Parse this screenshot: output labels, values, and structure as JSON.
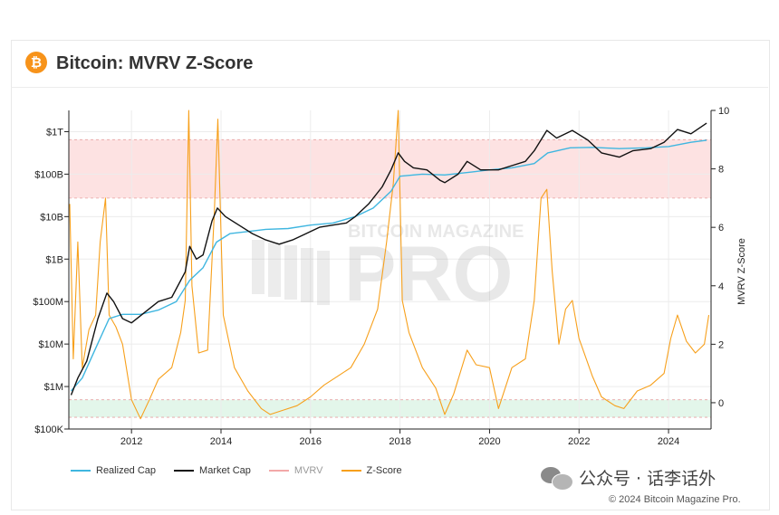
{
  "header": {
    "title": "Bitcoin: MVRV Z-Score",
    "logo_symbol": "₿",
    "logo_color": "#f7931a"
  },
  "legend": {
    "items": [
      {
        "label": "Realized Cap",
        "color": "#3fb6e0"
      },
      {
        "label": "Market Cap",
        "color": "#111111"
      },
      {
        "label": "MVRV",
        "color": "#f2a8a8"
      },
      {
        "label": "Z-Score",
        "color": "#f7a01c"
      }
    ]
  },
  "watermark": {
    "wechat": "公众号 · 话李话外",
    "chart_brand": "BITCOIN MAGAZINE",
    "chart_brand_big": "PRO"
  },
  "footer": {
    "copyright": "© 2024 Bitcoin Magazine Pro."
  },
  "chart_data": {
    "type": "line",
    "title": "Bitcoin: MVRV Z-Score",
    "xlabel": "",
    "ylabel_right": "MVRV Z-Score",
    "x_ticks": [
      "2012",
      "2014",
      "2016",
      "2018",
      "2020",
      "2022",
      "2024"
    ],
    "y_left_ticks": [
      "$100K",
      "$1M",
      "$10M",
      "$100M",
      "$1B",
      "$10B",
      "$100B",
      "$1T"
    ],
    "y_right_ticks": [
      "0",
      "2",
      "4",
      "6",
      "8",
      "10"
    ],
    "xlim": [
      2010.6,
      2024.95
    ],
    "y_left_log10_range": [
      5,
      12.5
    ],
    "y_right_range": [
      -0.9,
      10
    ],
    "bands": [
      {
        "name": "red",
        "from": 7,
        "to": 9,
        "color": "#fde2e2"
      },
      {
        "name": "green",
        "from": -0.5,
        "to": 0.1,
        "color": "#e3f6ea"
      }
    ],
    "series": [
      {
        "name": "Market Cap",
        "axis": "left",
        "color": "#111111",
        "x": [
          2010.65,
          2010.8,
          2011.0,
          2011.25,
          2011.45,
          2011.6,
          2011.8,
          2012.0,
          2012.3,
          2012.6,
          2012.9,
          2013.2,
          2013.3,
          2013.45,
          2013.6,
          2013.8,
          2013.92,
          2014.1,
          2014.4,
          2014.7,
          2015.0,
          2015.3,
          2015.6,
          2015.9,
          2016.2,
          2016.5,
          2016.8,
          2017.0,
          2017.3,
          2017.6,
          2017.8,
          2017.96,
          2018.1,
          2018.3,
          2018.6,
          2018.9,
          2019.0,
          2019.3,
          2019.5,
          2019.8,
          2020.2,
          2020.5,
          2020.8,
          2021.0,
          2021.28,
          2021.5,
          2021.85,
          2022.2,
          2022.5,
          2022.9,
          2023.2,
          2023.6,
          2023.9,
          2024.2,
          2024.5,
          2024.85
        ],
        "values": [
          5.8,
          6.2,
          6.6,
          7.6,
          8.2,
          8.0,
          7.6,
          7.5,
          7.75,
          8.0,
          8.1,
          8.7,
          9.3,
          9.0,
          9.1,
          9.9,
          10.2,
          10.0,
          9.8,
          9.6,
          9.45,
          9.35,
          9.45,
          9.6,
          9.75,
          9.8,
          9.85,
          10.0,
          10.3,
          10.7,
          11.1,
          11.5,
          11.3,
          11.15,
          11.1,
          10.85,
          10.8,
          11.0,
          11.3,
          11.1,
          11.1,
          11.2,
          11.3,
          11.55,
          12.03,
          11.85,
          12.03,
          11.8,
          11.5,
          11.4,
          11.55,
          11.6,
          11.75,
          12.05,
          11.95,
          12.2
        ]
      },
      {
        "name": "Realized Cap",
        "axis": "left",
        "color": "#3fb6e0",
        "x": [
          2010.65,
          2010.9,
          2011.2,
          2011.5,
          2011.8,
          2012.2,
          2012.6,
          2013.0,
          2013.3,
          2013.6,
          2013.9,
          2014.2,
          2014.6,
          2015.0,
          2015.5,
          2016.0,
          2016.5,
          2017.0,
          2017.4,
          2017.8,
          2018.0,
          2018.5,
          2019.0,
          2019.6,
          2020.0,
          2020.5,
          2021.0,
          2021.3,
          2021.8,
          2022.3,
          2022.9,
          2023.5,
          2024.0,
          2024.5,
          2024.85
        ],
        "values": [
          5.9,
          6.2,
          6.9,
          7.6,
          7.7,
          7.7,
          7.8,
          8.0,
          8.5,
          8.8,
          9.4,
          9.6,
          9.65,
          9.7,
          9.72,
          9.8,
          9.85,
          10.0,
          10.2,
          10.6,
          10.95,
          11.0,
          10.98,
          11.05,
          11.1,
          11.15,
          11.25,
          11.5,
          11.62,
          11.63,
          11.6,
          11.62,
          11.65,
          11.75,
          11.8
        ]
      },
      {
        "name": "Z-Score",
        "axis": "right",
        "color": "#f7a01c",
        "x": [
          2010.62,
          2010.7,
          2010.8,
          2010.9,
          2011.05,
          2011.2,
          2011.3,
          2011.42,
          2011.5,
          2011.65,
          2011.8,
          2012.0,
          2012.2,
          2012.4,
          2012.6,
          2012.9,
          2013.1,
          2013.2,
          2013.28,
          2013.35,
          2013.5,
          2013.7,
          2013.85,
          2013.93,
          2014.05,
          2014.3,
          2014.6,
          2014.9,
          2015.1,
          2015.4,
          2015.7,
          2016.0,
          2016.3,
          2016.6,
          2016.9,
          2017.2,
          2017.5,
          2017.7,
          2017.85,
          2017.96,
          2018.05,
          2018.2,
          2018.5,
          2018.8,
          2019.0,
          2019.2,
          2019.5,
          2019.7,
          2020.0,
          2020.2,
          2020.5,
          2020.8,
          2021.0,
          2021.15,
          2021.28,
          2021.4,
          2021.55,
          2021.7,
          2021.85,
          2022.0,
          2022.3,
          2022.5,
          2022.8,
          2023.0,
          2023.3,
          2023.6,
          2023.9,
          2024.05,
          2024.2,
          2024.4,
          2024.6,
          2024.8,
          2024.9
        ],
        "values": [
          6.8,
          1.5,
          5.5,
          1.2,
          2.5,
          3.0,
          5.5,
          7.0,
          3.0,
          2.6,
          2.0,
          0.1,
          -0.55,
          0.1,
          0.8,
          1.2,
          2.4,
          3.5,
          10.0,
          4.0,
          1.7,
          1.8,
          6.5,
          9.7,
          3.0,
          1.2,
          0.4,
          -0.2,
          -0.4,
          -0.25,
          -0.1,
          0.2,
          0.6,
          0.9,
          1.2,
          2.0,
          3.2,
          5.5,
          7.5,
          10.0,
          3.5,
          2.4,
          1.2,
          0.5,
          -0.4,
          0.3,
          1.8,
          1.3,
          1.2,
          -0.2,
          1.2,
          1.5,
          3.5,
          7.0,
          7.3,
          4.5,
          2.0,
          3.2,
          3.5,
          2.2,
          0.9,
          0.2,
          -0.1,
          -0.2,
          0.4,
          0.6,
          1.0,
          2.2,
          3.0,
          2.1,
          1.7,
          2.0,
          3.0
        ]
      }
    ]
  }
}
